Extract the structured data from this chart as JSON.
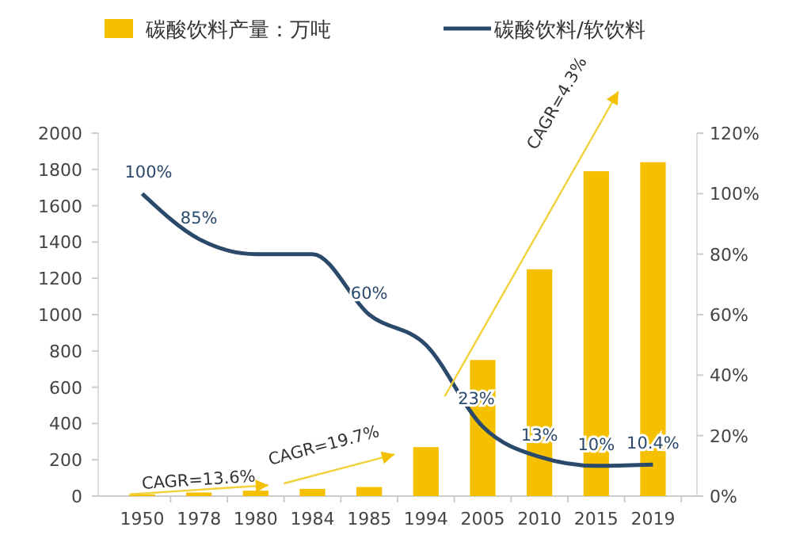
{
  "chart_data": {
    "type": "bar",
    "categories": [
      "1950",
      "1978",
      "1980",
      "1984",
      "1985",
      "1994",
      "2005",
      "2010",
      "2015",
      "2019"
    ],
    "series": [
      {
        "name": "碳酸饮料产量：万吨",
        "color": "#f5c000",
        "values": [
          10,
          20,
          30,
          40,
          50,
          270,
          750,
          1250,
          1790,
          1840
        ]
      },
      {
        "name": "碳酸饮料/软饮料",
        "type": "line",
        "axis": "y2",
        "color": "#2b4a6b",
        "values": [
          100,
          85,
          80,
          80,
          60,
          50,
          23,
          13,
          10,
          10.4
        ],
        "value_labels": [
          "100%",
          "85%",
          null,
          null,
          "60%",
          null,
          "23%",
          "13%",
          "10%",
          "10.4%"
        ]
      }
    ],
    "ylim": [
      0,
      2000
    ],
    "yticks": [
      0,
      200,
      400,
      600,
      800,
      1000,
      1200,
      1400,
      1600,
      1800,
      2000
    ],
    "y2lim": [
      0,
      120
    ],
    "y2ticks": [
      {
        "value": 0,
        "label": "0%"
      },
      {
        "value": 20,
        "label": "20%"
      },
      {
        "value": 40,
        "label": "40%"
      },
      {
        "value": 60,
        "label": "60%"
      },
      {
        "value": 80,
        "label": "80%"
      },
      {
        "value": 100,
        "label": "100%"
      },
      {
        "value": 120,
        "label": "120%"
      }
    ],
    "annotations": [
      "CAGR=13.6%",
      "CAGR=19.7%",
      "CAGR=4.3%"
    ],
    "legend": "top",
    "grid": false
  }
}
